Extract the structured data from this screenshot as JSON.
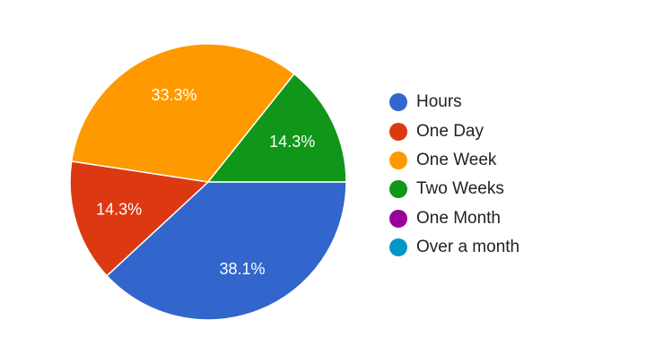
{
  "chart_data": {
    "type": "pie",
    "slices": [
      {
        "label": "Hours",
        "value": 38.1,
        "display": "38.1%",
        "color": "#3366cc"
      },
      {
        "label": "One Day",
        "value": 14.3,
        "display": "14.3%",
        "color": "#dc3912"
      },
      {
        "label": "One Week",
        "value": 33.3,
        "display": "33.3%",
        "color": "#ff9900"
      },
      {
        "label": "Two Weeks",
        "value": 14.3,
        "display": "14.3%",
        "color": "#109618"
      },
      {
        "label": "One Month",
        "value": 0,
        "display": "",
        "color": "#990099"
      },
      {
        "label": "Over a month",
        "value": 0,
        "display": "",
        "color": "#0099c6"
      }
    ],
    "legend_position": "right"
  }
}
